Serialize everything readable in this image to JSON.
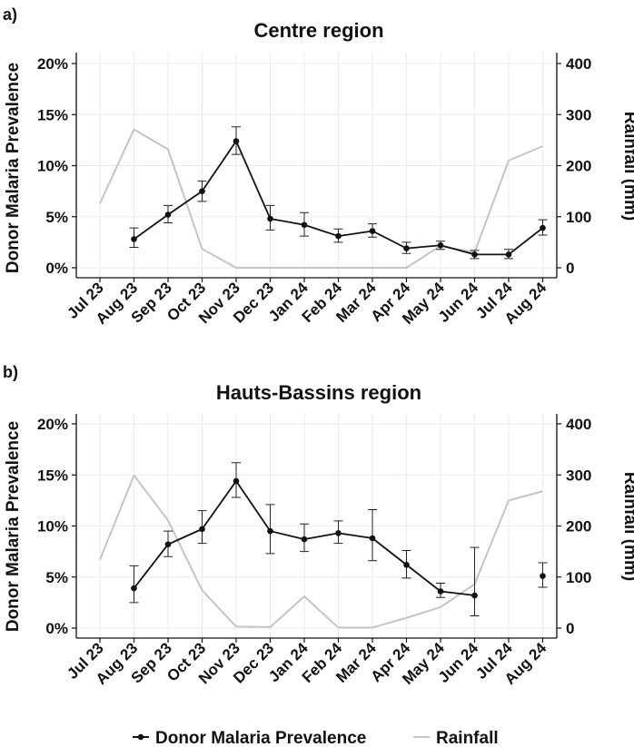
{
  "panels": [
    {
      "label": "a)",
      "title": "Centre region"
    },
    {
      "label": "b)",
      "title": "Hauts-Bassins region"
    }
  ],
  "legend": {
    "items": [
      {
        "label": "Donor Malaria Prevalence",
        "color": "#111111"
      },
      {
        "label": "Rainfall",
        "color": "#c4c4c4"
      }
    ],
    "placement": "bottom"
  },
  "chart_data": [
    {
      "type": "line",
      "title": "Centre region",
      "xlabel": "",
      "ylabel": "Donor Malaria Prevalence",
      "y2label": "Rainfall (mm)",
      "categories": [
        "Jul 23",
        "Aug 23",
        "Sep 23",
        "Oct 23",
        "Nov 23",
        "Dec 23",
        "Jan 24",
        "Feb 24",
        "Mar 24",
        "Apr 24",
        "May 24",
        "Jun 24",
        "Jul 24",
        "Aug 24"
      ],
      "ylim": [
        0,
        20
      ],
      "yticks": [
        "0%",
        "5%",
        "10%",
        "15%",
        "20%"
      ],
      "y2lim": [
        0,
        400
      ],
      "y2ticks": [
        "0",
        "100",
        "200",
        "300",
        "400"
      ],
      "grid": true,
      "series": [
        {
          "name": "Donor Malaria Prevalence",
          "axis": "left",
          "color": "#111111",
          "values": [
            null,
            2.8,
            5.2,
            7.5,
            12.4,
            4.8,
            4.2,
            3.1,
            3.6,
            1.9,
            2.2,
            1.3,
            1.3,
            3.9
          ],
          "err_low": [
            null,
            2.0,
            4.4,
            6.5,
            11.1,
            3.7,
            3.1,
            2.5,
            3.0,
            1.4,
            1.8,
            0.9,
            0.9,
            3.2
          ],
          "err_high": [
            null,
            3.9,
            6.1,
            8.5,
            13.8,
            6.1,
            5.4,
            3.8,
            4.3,
            2.5,
            2.6,
            1.7,
            1.8,
            4.7
          ]
        },
        {
          "name": "Rainfall",
          "axis": "right",
          "color": "#c4c4c4",
          "values": [
            126,
            271,
            232,
            37,
            0,
            0,
            0,
            0,
            0,
            0,
            43,
            30,
            210,
            238
          ]
        }
      ]
    },
    {
      "type": "line",
      "title": "Hauts-Bassins region",
      "xlabel": "",
      "ylabel": "Donor Malaria Prevalence",
      "y2label": "Rainfall (mm)",
      "categories": [
        "Jul 23",
        "Aug 23",
        "Sep 23",
        "Oct 23",
        "Nov 23",
        "Dec 23",
        "Jan 24",
        "Feb 24",
        "Mar 24",
        "Apr 24",
        "May 24",
        "Jun 24",
        "Jul 24",
        "Aug 24"
      ],
      "ylim": [
        0,
        20
      ],
      "yticks": [
        "0%",
        "5%",
        "10%",
        "15%",
        "20%"
      ],
      "y2lim": [
        0,
        400
      ],
      "y2ticks": [
        "0",
        "100",
        "200",
        "300",
        "400"
      ],
      "grid": true,
      "series": [
        {
          "name": "Donor Malaria Prevalence",
          "axis": "left",
          "color": "#111111",
          "values": [
            null,
            3.9,
            8.2,
            9.7,
            14.4,
            9.5,
            8.7,
            9.3,
            8.8,
            6.2,
            3.6,
            3.2,
            null,
            5.1
          ],
          "err_low": [
            null,
            2.5,
            7.0,
            8.3,
            12.8,
            7.3,
            7.5,
            8.3,
            6.6,
            4.9,
            3.0,
            1.2,
            null,
            4.0
          ],
          "err_high": [
            null,
            6.1,
            9.5,
            11.5,
            16.2,
            12.1,
            10.2,
            10.5,
            11.6,
            7.6,
            4.4,
            7.9,
            null,
            6.4
          ]
        },
        {
          "name": "Rainfall",
          "axis": "right",
          "color": "#c4c4c4",
          "values": [
            134,
            299,
            211,
            74,
            3,
            2,
            62,
            1,
            1,
            20,
            41,
            86,
            250,
            268
          ]
        }
      ]
    }
  ]
}
